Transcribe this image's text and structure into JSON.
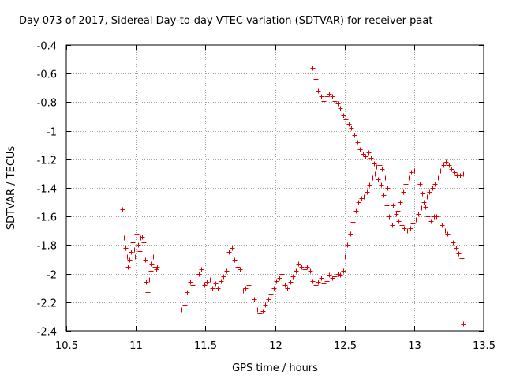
{
  "chart_data": {
    "type": "scatter",
    "title": "Day 073 of 2017, Sidereal Day-to-day VTEC variation (SDTVAR) for receiver paat",
    "xlabel": "GPS time / hours",
    "ylabel": "SDTVAR / TECUs",
    "xlim": [
      10.5,
      13.5
    ],
    "ylim": [
      -2.4,
      -0.4
    ],
    "xticks": [
      10.5,
      11,
      11.5,
      12,
      12.5,
      13,
      13.5
    ],
    "xtick_labels": [
      "10.5",
      "11",
      "11.5",
      "12",
      "12.5",
      "13",
      "13.5"
    ],
    "yticks": [
      -2.4,
      -2.2,
      -2,
      -1.8,
      -1.6,
      -1.4,
      -1.2,
      -1,
      -0.8,
      -0.6,
      -0.4
    ],
    "ytick_labels": [
      "-2.4",
      "-2.2",
      "-2",
      "-1.8",
      "-1.6",
      "-1.4",
      "-1.2",
      "-1",
      "-0.8",
      "-0.6",
      "-0.4"
    ],
    "grid": true,
    "marker": "+",
    "color": "#e00000",
    "series": [
      {
        "name": "SDTVAR",
        "x": [
          10.905,
          10.915,
          10.925,
          10.935,
          10.945,
          10.955,
          10.965,
          10.975,
          10.985,
          10.995,
          11.005,
          11.015,
          11.025,
          11.035,
          11.045,
          11.055,
          11.065,
          11.075,
          11.085,
          11.095,
          11.105,
          11.115,
          11.125,
          11.135,
          11.145,
          11.155,
          11.33,
          11.35,
          11.37,
          11.39,
          11.41,
          11.43,
          11.45,
          11.47,
          11.49,
          11.51,
          11.53,
          11.55,
          11.57,
          11.59,
          11.61,
          11.63,
          11.65,
          11.67,
          11.69,
          11.71,
          11.73,
          11.75,
          11.77,
          11.79,
          11.81,
          11.83,
          11.85,
          11.87,
          11.89,
          11.91,
          11.93,
          11.95,
          11.97,
          11.99,
          12.01,
          12.03,
          12.05,
          12.07,
          12.09,
          12.11,
          12.13,
          12.15,
          12.17,
          12.19,
          12.21,
          12.23,
          12.25,
          12.27,
          12.29,
          12.31,
          12.33,
          12.35,
          12.37,
          12.39,
          12.41,
          12.43,
          12.45,
          12.47,
          12.49,
          12.5,
          12.52,
          12.54,
          12.56,
          12.58,
          12.6,
          12.62,
          12.64,
          12.66,
          12.68,
          12.7,
          12.72,
          12.74,
          12.76,
          12.78,
          12.8,
          12.82,
          12.84,
          12.86,
          12.88,
          12.9,
          12.92,
          12.94,
          12.96,
          12.98,
          13.0,
          13.02,
          13.04,
          13.06,
          13.08,
          13.1,
          13.12,
          13.14,
          13.16,
          13.18,
          13.2,
          13.22,
          13.24,
          13.26,
          13.28,
          13.3,
          13.32,
          13.34,
          12.27,
          12.29,
          12.31,
          12.33,
          12.35,
          12.37,
          12.39,
          12.41,
          12.43,
          12.45,
          12.47,
          12.49,
          12.51,
          12.53,
          12.55,
          12.57,
          12.59,
          12.61,
          12.63,
          12.65,
          12.67,
          12.69,
          12.71,
          12.73,
          12.75,
          12.77,
          12.79,
          12.81,
          12.83,
          12.85,
          12.87,
          12.89,
          12.91,
          12.93,
          12.95,
          12.97,
          12.99,
          13.01,
          13.03,
          13.05,
          13.07,
          13.09,
          13.11,
          13.13,
          13.15,
          13.17,
          13.19,
          13.21,
          13.23,
          13.25,
          13.27,
          13.29,
          13.31,
          13.33,
          13.35,
          13.35
        ],
        "y": [
          -1.55,
          -1.75,
          -1.82,
          -1.88,
          -1.95,
          -1.9,
          -1.85,
          -1.78,
          -1.83,
          -1.88,
          -1.72,
          -1.8,
          -1.84,
          -1.75,
          -1.74,
          -1.78,
          -1.9,
          -2.06,
          -2.13,
          -2.04,
          -1.98,
          -1.93,
          -1.88,
          -1.95,
          -1.97,
          -1.95,
          -2.25,
          -2.22,
          -2.13,
          -2.06,
          -2.08,
          -2.12,
          -2.0,
          -1.97,
          -2.08,
          -2.06,
          -2.04,
          -2.1,
          -2.07,
          -2.1,
          -2.05,
          -2.02,
          -1.98,
          -1.85,
          -1.82,
          -1.9,
          -1.95,
          -1.97,
          -2.12,
          -2.1,
          -2.08,
          -2.12,
          -2.18,
          -2.25,
          -2.28,
          -2.26,
          -2.22,
          -2.18,
          -2.14,
          -2.1,
          -2.05,
          -2.03,
          -2.0,
          -2.08,
          -2.1,
          -2.06,
          -2.02,
          -1.98,
          -1.93,
          -1.95,
          -1.97,
          -1.95,
          -1.98,
          -2.05,
          -2.08,
          -2.06,
          -2.03,
          -2.07,
          -2.05,
          -2.01,
          -2.03,
          -2.02,
          -2.0,
          -2.01,
          -1.98,
          -1.88,
          -1.8,
          -1.72,
          -1.64,
          -1.56,
          -1.5,
          -1.47,
          -1.46,
          -1.43,
          -1.38,
          -1.33,
          -1.3,
          -1.34,
          -1.38,
          -1.45,
          -1.52,
          -1.6,
          -1.66,
          -1.62,
          -1.56,
          -1.5,
          -1.43,
          -1.37,
          -1.33,
          -1.29,
          -1.28,
          -1.3,
          -1.37,
          -1.44,
          -1.53,
          -1.6,
          -1.63,
          -1.6,
          -1.6,
          -1.62,
          -1.66,
          -1.7,
          -1.72,
          -1.75,
          -1.78,
          -1.82,
          -1.86,
          -1.89,
          -0.56,
          -0.64,
          -0.72,
          -0.76,
          -0.79,
          -0.76,
          -0.74,
          -0.76,
          -0.79,
          -0.81,
          -0.84,
          -0.89,
          -0.92,
          -0.95,
          -0.98,
          -1.03,
          -1.08,
          -1.13,
          -1.16,
          -1.18,
          -1.15,
          -1.19,
          -1.23,
          -1.25,
          -1.24,
          -1.27,
          -1.33,
          -1.4,
          -1.46,
          -1.52,
          -1.58,
          -1.63,
          -1.66,
          -1.68,
          -1.7,
          -1.68,
          -1.65,
          -1.62,
          -1.58,
          -1.54,
          -1.5,
          -1.46,
          -1.43,
          -1.4,
          -1.37,
          -1.33,
          -1.28,
          -1.24,
          -1.22,
          -1.24,
          -1.27,
          -1.29,
          -1.31,
          -1.31,
          -1.3,
          -2.35
        ]
      }
    ]
  }
}
